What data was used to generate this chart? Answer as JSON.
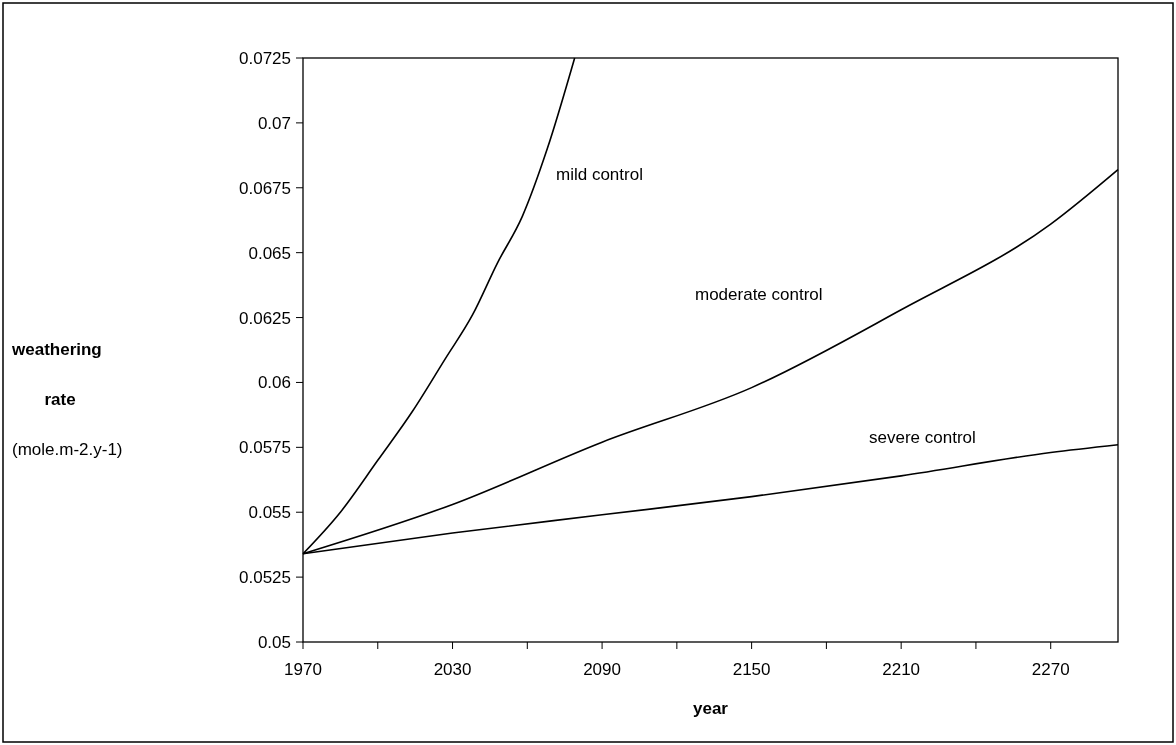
{
  "chart_data": {
    "type": "line",
    "xlabel": "year",
    "ylabel": "weathering rate (mole.m-2.y-1)",
    "xlim": [
      1970,
      2297
    ],
    "ylim": [
      0.05,
      0.0725
    ],
    "xticks": [
      1970,
      {
        "value": 2000,
        "label": null
      },
      2030,
      {
        "value": 2060,
        "label": null
      },
      2090,
      {
        "value": 2120,
        "label": null
      },
      2150,
      {
        "value": 2180,
        "label": null
      },
      2210,
      {
        "value": 2240,
        "label": null
      },
      2270
    ],
    "yticks": [
      0.05,
      0.0525,
      0.055,
      0.0575,
      0.06,
      0.0625,
      0.065,
      0.0675,
      0.07,
      0.0725
    ],
    "grid": false,
    "line_style": "solid",
    "series": [
      {
        "name": "mild control",
        "color": "#000000",
        "x": [
          1970,
          1985,
          2000,
          2014,
          2027,
          2038,
          2048,
          2058,
          2068,
          2079
        ],
        "values": [
          0.0534,
          0.055,
          0.057,
          0.0589,
          0.0609,
          0.0626,
          0.0646,
          0.0664,
          0.069,
          0.0725
        ]
      },
      {
        "name": "moderate control",
        "color": "#000000",
        "x": [
          1970,
          2030,
          2090,
          2150,
          2210,
          2270,
          2297
        ],
        "values": [
          0.0534,
          0.0553,
          0.0577,
          0.0598,
          0.0628,
          0.0661,
          0.0682
        ]
      },
      {
        "name": "severe control",
        "color": "#000000",
        "x": [
          1970,
          2030,
          2090,
          2150,
          2210,
          2270,
          2297
        ],
        "values": [
          0.0534,
          0.0542,
          0.0549,
          0.0556,
          0.0564,
          0.0573,
          0.0576
        ]
      }
    ]
  }
}
